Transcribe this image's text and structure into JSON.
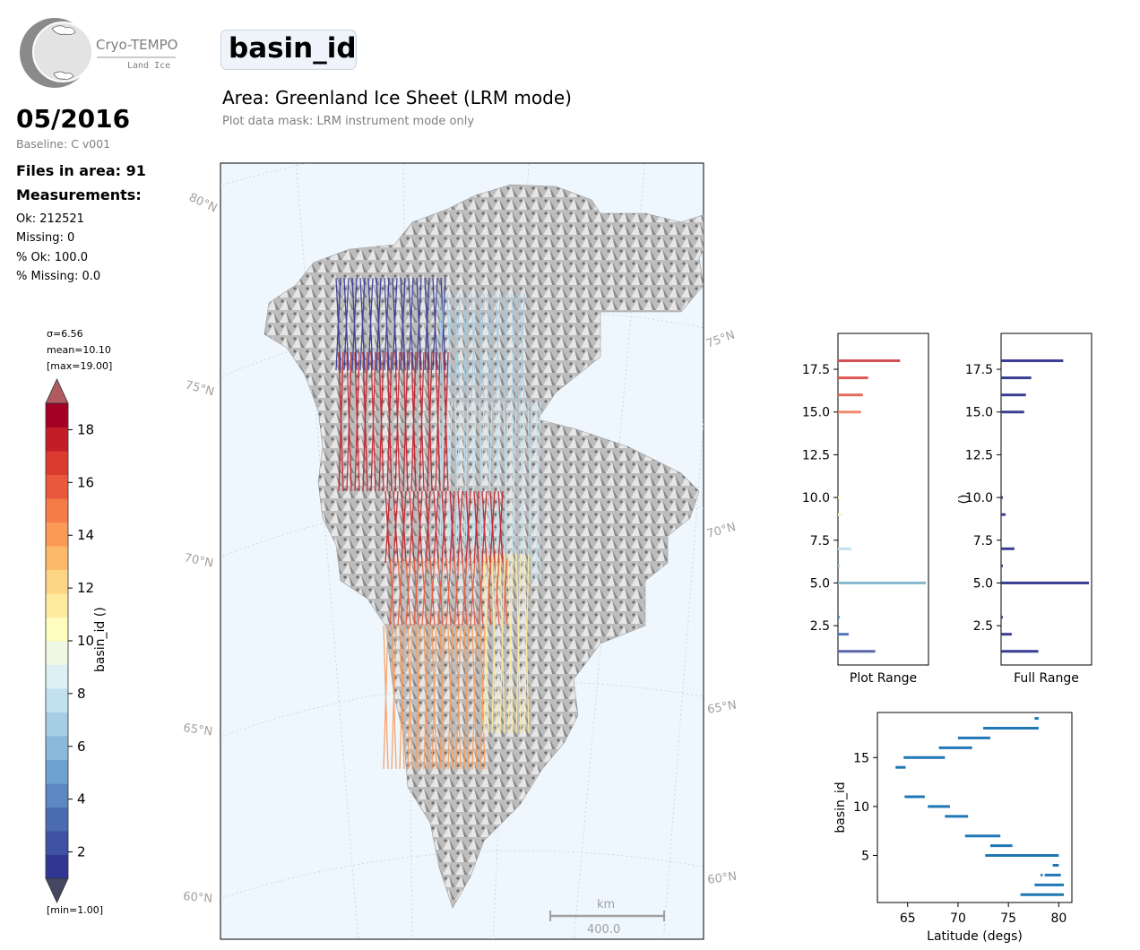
{
  "logo": {
    "title": "Cryo-TEMPO",
    "subtitle": "Land Ice"
  },
  "header": {
    "date": "05/2016",
    "baseline": "Baseline: C v001",
    "files": "Files in area: 91",
    "measurements_label": "Measurements:",
    "stats": [
      "Ok: 212521",
      "Missing: 0",
      "% Ok: 100.0",
      "% Missing: 0.0"
    ]
  },
  "title": {
    "parameter": "basin_id",
    "area": "Area: Greenland Ice Sheet (LRM mode)",
    "mask": "Plot data mask: LRM instrument mode only"
  },
  "colorbar": {
    "label": "basin_id ()",
    "sigma": "σ=6.56",
    "mean": "mean=10.10",
    "max": "[max=19.00]",
    "min": "[min=1.00]",
    "vmin": 1,
    "vmax": 19,
    "ticks": [
      2,
      4,
      6,
      8,
      10,
      12,
      14,
      16,
      18
    ],
    "tick_labels": [
      "2",
      "4",
      "6",
      "8",
      "10",
      "12",
      "14",
      "16",
      "18"
    ],
    "colors": [
      "#313695",
      "#3f51a3",
      "#4b6cb1",
      "#5b88c0",
      "#6fa3cf",
      "#8ab9da",
      "#a5cde3",
      "#c1e1ee",
      "#dcf0f5",
      "#eef8e2",
      "#fffdbd",
      "#feeb9e",
      "#fed683",
      "#fdb96a",
      "#fb9a56",
      "#f57b47",
      "#e9583b",
      "#db3a2f",
      "#c41d28",
      "#a50026"
    ],
    "over_color": "#b05a5f",
    "under_color": "#454763"
  },
  "map": {
    "lat_labels_left": [
      "80°N",
      "75°N",
      "70°N",
      "65°N",
      "60°N"
    ],
    "lat_labels_right": [
      "75°N",
      "70°N",
      "65°N",
      "60°N"
    ],
    "scalebar_unit": "km",
    "scalebar_value": "400.0",
    "sea_color": "#eff7fe"
  },
  "chart_data": [
    {
      "type": "bar",
      "orientation": "horizontal",
      "xlabel": "Plot Range",
      "ylabel": "",
      "ylim": [
        0.2,
        19.6
      ],
      "yticks": [
        2.5,
        5.0,
        7.5,
        10.0,
        12.5,
        15.0,
        17.5
      ],
      "ytick_labels": [
        "2.5",
        "5.0",
        "7.5",
        "10.0",
        "12.5",
        "15.0",
        "17.5"
      ],
      "bars": [
        {
          "y": 1,
          "value": 0.42,
          "color": "#5b66a8"
        },
        {
          "y": 2,
          "value": 0.12,
          "color": "#5276b5"
        },
        {
          "y": 3,
          "value": 0.02,
          "color": "#5e88c0"
        },
        {
          "y": 5,
          "value": 0.99,
          "color": "#8ab8cf"
        },
        {
          "y": 6,
          "value": 0.02,
          "color": "#a5cde3"
        },
        {
          "y": 7,
          "value": 0.15,
          "color": "#c1e1ee"
        },
        {
          "y": 9,
          "value": 0.05,
          "color": "#fbf4c6"
        },
        {
          "y": 10,
          "value": 0.02,
          "color": "#fffdbd"
        },
        {
          "y": 15,
          "value": 0.26,
          "color": "#ee8a6b"
        },
        {
          "y": 16,
          "value": 0.28,
          "color": "#e36a5c"
        },
        {
          "y": 17,
          "value": 0.34,
          "color": "#df5a55"
        },
        {
          "y": 18,
          "value": 0.7,
          "color": "#d14f55"
        }
      ]
    },
    {
      "type": "bar",
      "orientation": "horizontal",
      "xlabel": "Full Range",
      "ylabel": "()",
      "ylim": [
        0.2,
        19.6
      ],
      "yticks": [
        2.5,
        5.0,
        7.5,
        10.0,
        12.5,
        15.0,
        17.5
      ],
      "ytick_labels": [
        "2.5",
        "5.0",
        "7.5",
        "10.0",
        "12.5",
        "15.0",
        "17.5"
      ],
      "bars": [
        {
          "y": 1,
          "value": 0.42,
          "color": "#3b3d95"
        },
        {
          "y": 2,
          "value": 0.12,
          "color": "#3b3d95"
        },
        {
          "y": 3,
          "value": 0.02,
          "color": "#3b3d95"
        },
        {
          "y": 5,
          "value": 0.99,
          "color": "#3b3d95"
        },
        {
          "y": 6,
          "value": 0.02,
          "color": "#3b3d95"
        },
        {
          "y": 7,
          "value": 0.15,
          "color": "#3b3d95"
        },
        {
          "y": 9,
          "value": 0.05,
          "color": "#3b3d95"
        },
        {
          "y": 10,
          "value": 0.02,
          "color": "#3b3d95"
        },
        {
          "y": 15,
          "value": 0.26,
          "color": "#3b3d95"
        },
        {
          "y": 16,
          "value": 0.28,
          "color": "#3b3d95"
        },
        {
          "y": 17,
          "value": 0.34,
          "color": "#3b3d95"
        },
        {
          "y": 18,
          "value": 0.7,
          "color": "#3b3d95"
        }
      ]
    },
    {
      "type": "scatter",
      "xlabel": "Latitude (degs)",
      "ylabel": "basin_id",
      "xlim": [
        62.0,
        81.3
      ],
      "ylim": [
        0.2,
        19.6
      ],
      "xticks": [
        65,
        70,
        75,
        80
      ],
      "xtick_labels": [
        "65",
        "70",
        "75",
        "80"
      ],
      "yticks": [
        5,
        10,
        15
      ],
      "ytick_labels": [
        "5",
        "10",
        "15"
      ],
      "color": "#1f77b4",
      "segments": [
        {
          "y": 1,
          "x0": 76.2,
          "x1": 80.5
        },
        {
          "y": 2,
          "x0": 77.6,
          "x1": 80.5
        },
        {
          "y": 3,
          "x0": 78.6,
          "x1": 80.2
        },
        {
          "y": 3,
          "x0": 78.2,
          "x1": 78.4
        },
        {
          "y": 4,
          "x0": 79.4,
          "x1": 80.0
        },
        {
          "y": 5,
          "x0": 72.7,
          "x1": 80.0
        },
        {
          "y": 6,
          "x0": 73.2,
          "x1": 75.4
        },
        {
          "y": 7,
          "x0": 70.7,
          "x1": 74.2
        },
        {
          "y": 9,
          "x0": 68.7,
          "x1": 71.0
        },
        {
          "y": 10,
          "x0": 67.0,
          "x1": 69.2
        },
        {
          "y": 11,
          "x0": 64.7,
          "x1": 66.7
        },
        {
          "y": 14,
          "x0": 63.8,
          "x1": 64.8
        },
        {
          "y": 15,
          "x0": 64.6,
          "x1": 68.7
        },
        {
          "y": 16,
          "x0": 68.1,
          "x1": 71.4
        },
        {
          "y": 17,
          "x0": 70.0,
          "x1": 73.2
        },
        {
          "y": 18,
          "x0": 72.5,
          "x1": 78.0
        },
        {
          "y": 19,
          "x0": 77.6,
          "x1": 78.0
        }
      ]
    }
  ]
}
